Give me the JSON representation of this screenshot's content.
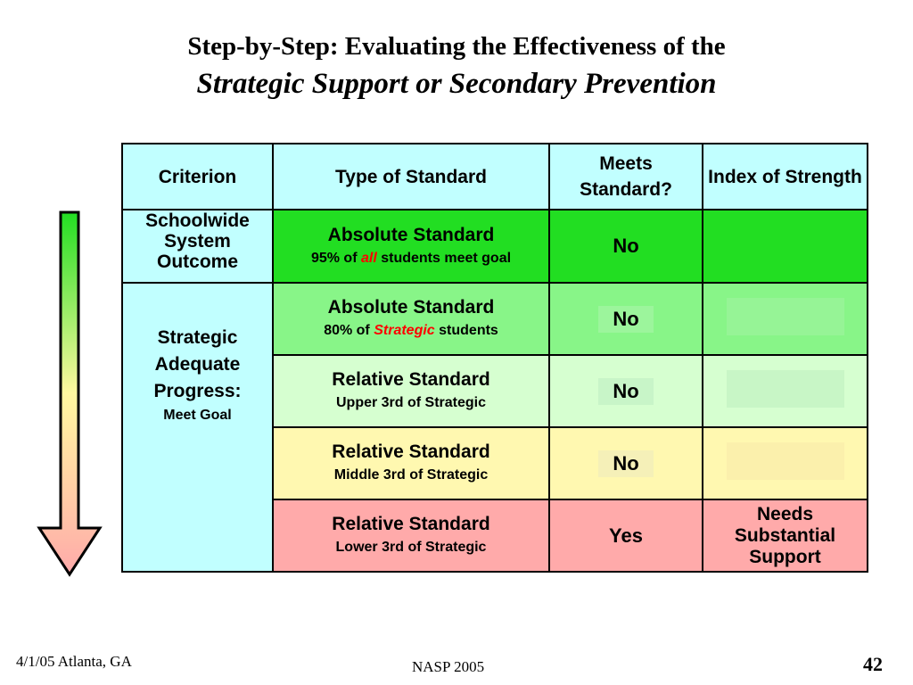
{
  "slide": {
    "title_line1": "Step-by-Step: Evaluating the Effectiveness of the",
    "title_line2": "Strategic Support or Secondary Prevention"
  },
  "colors": {
    "header": "#c1ffff",
    "row1": "#22de22",
    "row2": "#88f588",
    "row3": "#d6ffd0",
    "row4": "#fff8b0",
    "row5": "#ffaaaa",
    "emphasis": "#ff0000"
  },
  "table": {
    "headers": {
      "criterion": "Criterion",
      "type": "Type of Standard",
      "meets": "Meets Standard?",
      "index": "Index of Strength"
    },
    "row1": {
      "criterion": "Schoolwide System Outcome",
      "std_main": "Absolute Standard",
      "std_pre": "95% of",
      "std_em": "all",
      "std_post": "students meet goal",
      "meets": "No",
      "index": ""
    },
    "strategic_criterion": {
      "line1": "Strategic Adequate Progress:",
      "line2": "Meet Goal"
    },
    "row2": {
      "std_main": "Absolute Standard",
      "std_pre": "80% of",
      "std_em": "Strategic",
      "std_post": "students",
      "meets": "No",
      "index": ""
    },
    "row3": {
      "std_main": "Relative Standard",
      "std_sub": "Upper 3rd of Strategic",
      "meets": "No",
      "index": ""
    },
    "row4": {
      "std_main": "Relative Standard",
      "std_sub": "Middle 3rd of Strategic",
      "meets": "No",
      "index": ""
    },
    "row5": {
      "std_main": "Relative Standard",
      "std_sub": "Lower 3rd of Strategic",
      "meets": "Yes",
      "index": "Needs Substantial Support"
    }
  },
  "arrow": {
    "icon": "down-arrow-gradient-icon",
    "top_color": "#22de22",
    "bottom_color": "#ffaaaa"
  },
  "footer": {
    "left": "4/1/05 Atlanta, GA",
    "center": "NASP 2005",
    "page": "42"
  }
}
